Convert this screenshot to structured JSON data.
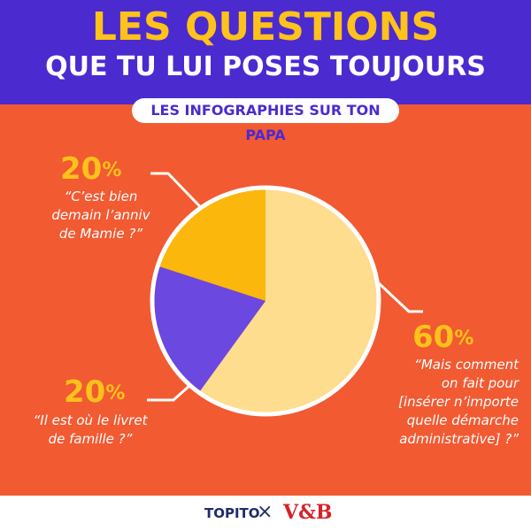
{
  "header": {
    "title_line1": "LES QUESTIONS",
    "title_line2": "QUE TU LUI POSES TOUJOURS",
    "subtitle": "LES INFOGRAPHIES SUR TON PAPA"
  },
  "chart_data": {
    "type": "pie",
    "title": "LES QUESTIONS QUE TU LUI POSES TOUJOURS",
    "slices": [
      {
        "label": "“Mais comment on fait pour [insérer n’importe quelle démarche administrative] ?”",
        "value": 60,
        "display": "60",
        "color": "#fedd8e"
      },
      {
        "label": "“Il est où le livret de famille ?”",
        "value": 20,
        "display": "20",
        "color": "#6b48e0"
      },
      {
        "label": "“C’est bien demain l’anniv de Mamie ?”",
        "value": 20,
        "display": "20",
        "color": "#fbb70c"
      }
    ],
    "percent_symbol": "%",
    "quotes": {
      "slice0": "“Mais comment\non fait pour\n[insérer n’importe\nquelle démarche\nadministrative] ?”",
      "slice1": "“Il est où le livret\nde famille ?”",
      "slice2": "“C’est bien\ndemain l’anniv\nde Mamie ?”"
    }
  },
  "footer": {
    "logo_left": "TOPITO",
    "separator": "×",
    "logo_right": "V&B"
  },
  "colors": {
    "background": "#f25a32",
    "header": "#4b2ad0",
    "accent": "#ffc21a"
  }
}
